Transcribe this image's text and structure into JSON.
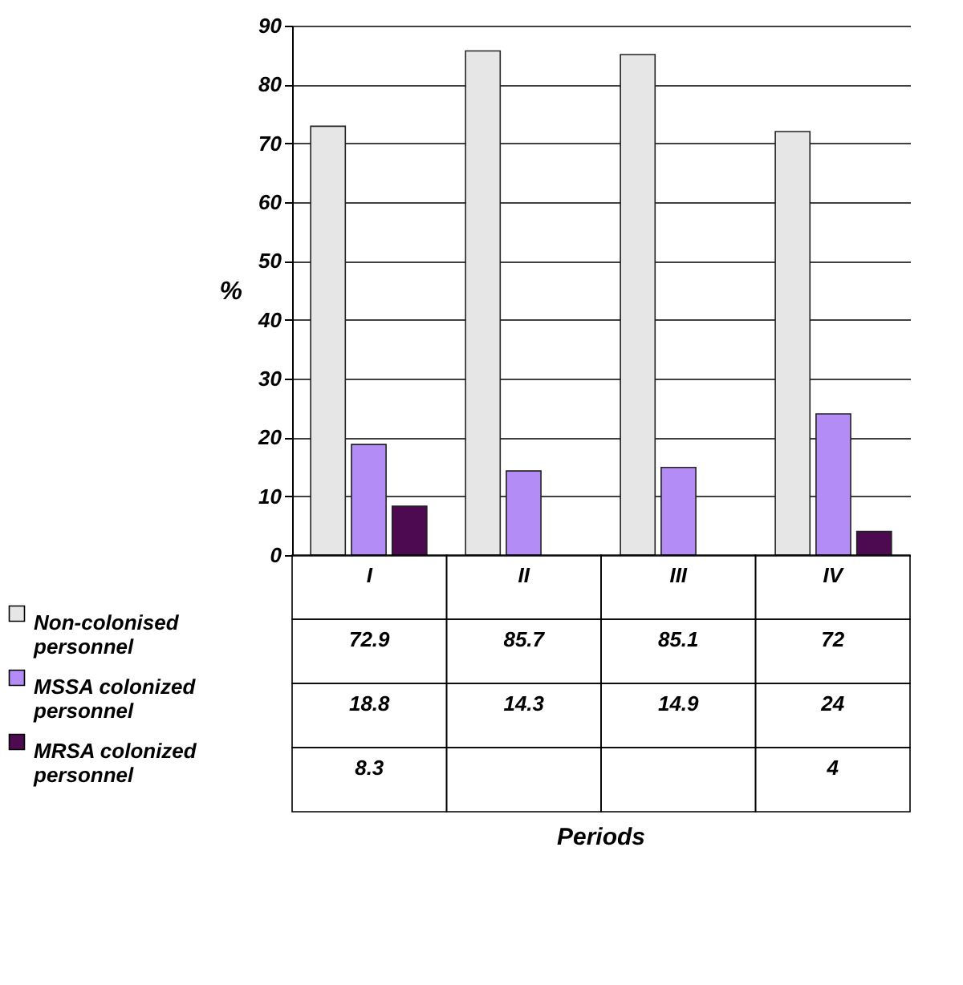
{
  "chart_data": {
    "type": "bar",
    "annotations": [
      "Periods"
    ],
    "ylabel": "%",
    "categories": [
      "I",
      "II",
      "III",
      "IV"
    ],
    "series": [
      {
        "name": "Non-colonised personnel",
        "color": "#e6e6e6",
        "values": [
          72.9,
          85.7,
          85.1,
          72
        ]
      },
      {
        "name": "MSSA colonized personnel",
        "color": "#b48cf5",
        "values": [
          18.8,
          14.3,
          14.9,
          24
        ]
      },
      {
        "name": "MRSA colonized personnel",
        "color": "#4d0a50",
        "values": [
          8.3,
          null,
          null,
          4
        ]
      }
    ],
    "ylim": [
      0,
      90
    ],
    "yticks": [
      0,
      10,
      20,
      30,
      40,
      50,
      60,
      70,
      80,
      90
    ],
    "grid": "y",
    "legend": "bottom left",
    "data_labels": true
  }
}
